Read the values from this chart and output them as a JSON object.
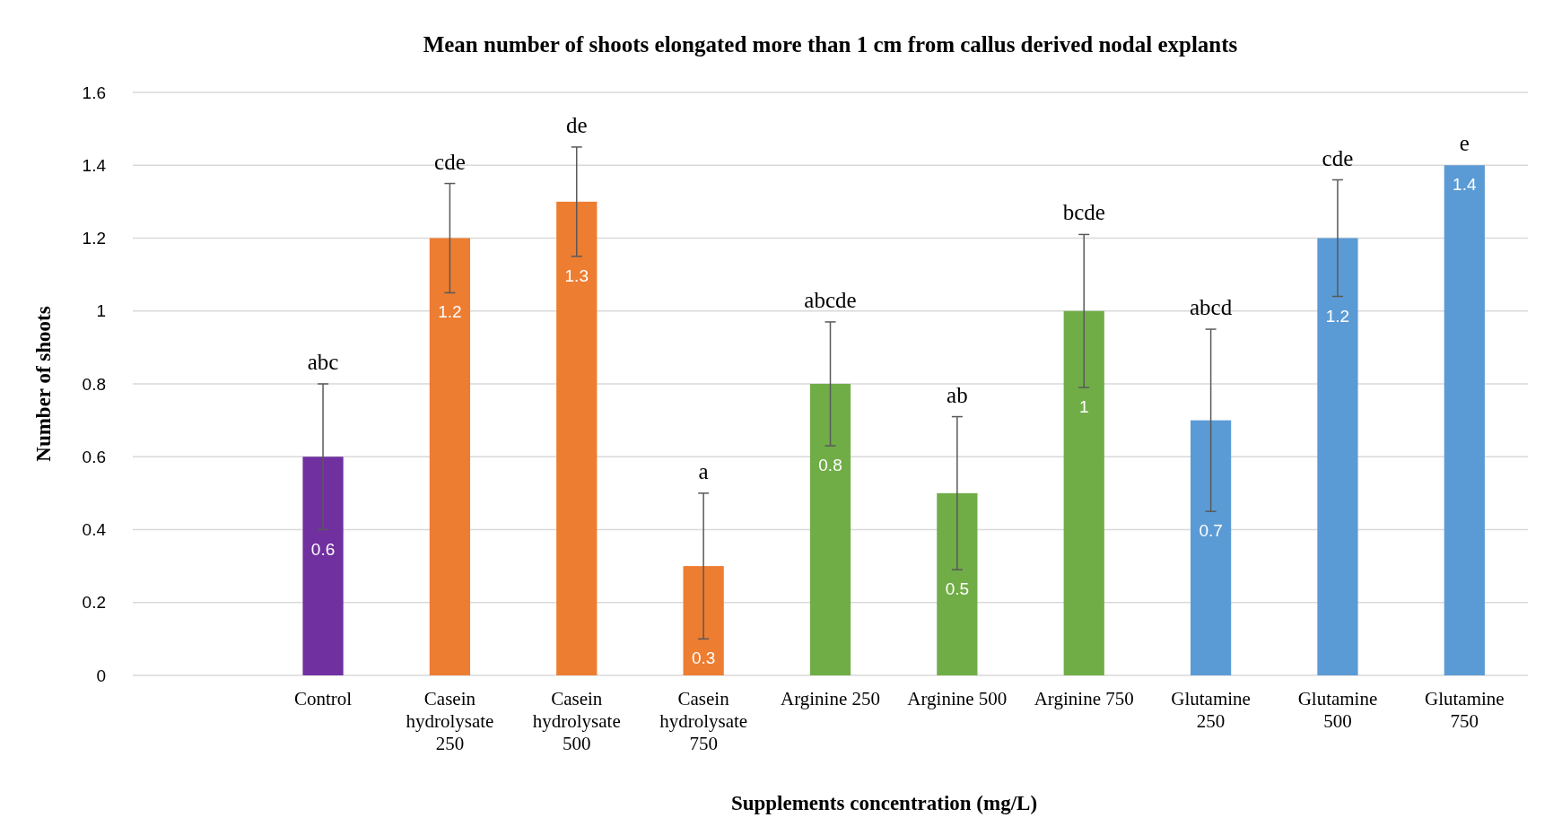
{
  "chart_data": {
    "type": "bar",
    "title": "Mean number of shoots elongated more than 1 cm from callus derived nodal explants",
    "xlabel": "Supplements concentration (mg/L)",
    "ylabel": "Number of shoots",
    "categories": [
      null,
      "Control",
      "Casein hydrolysate 250",
      "Casein hydrolysate 500",
      "Casein hydrolysate 750",
      "Arginine 250",
      "Arginine 500",
      "Arginine 750",
      "Glutamine 250",
      "Glutamine 500",
      "Glutamine 750"
    ],
    "values": [
      null,
      0.6,
      1.2,
      1.3,
      0.3,
      0.8,
      0.5,
      1.0,
      0.7,
      1.2,
      1.4
    ],
    "errors": [
      null,
      0.2,
      0.15,
      0.15,
      0.2,
      0.17,
      0.21,
      0.21,
      0.25,
      0.16,
      null
    ],
    "colors": [
      null,
      "#7030a0",
      "#ed7d31",
      "#ed7d31",
      "#ed7d31",
      "#70ad47",
      "#70ad47",
      "#70ad47",
      "#5b9bd5",
      "#5b9bd5",
      "#5b9bd5"
    ],
    "ylim": [
      0,
      1.6
    ],
    "yticks": [
      0,
      0.2,
      0.4,
      0.6,
      0.8,
      1,
      1.2,
      1.4,
      1.6
    ],
    "grid": "y",
    "data_labels": true,
    "annotations": [
      {
        "text": "abc",
        "x": "Control",
        "y": 0.8
      },
      {
        "text": "cde",
        "x": "Casein hydrolysate 250",
        "y": 1.35
      },
      {
        "text": "de",
        "x": "Casein hydrolysate 500",
        "y": 1.45
      },
      {
        "text": "a",
        "x": "Casein hydrolysate 750",
        "y": 0.5
      },
      {
        "text": "abcde",
        "x": "Arginine 250",
        "y": 0.97
      },
      {
        "text": "ab",
        "x": "Arginine 500",
        "y": 0.71
      },
      {
        "text": "bcde",
        "x": "Arginine 750",
        "y": 1.21
      },
      {
        "text": "abcd",
        "x": "Glutamine 250",
        "y": 0.95
      },
      {
        "text": "cde",
        "x": "Glutamine 500",
        "y": 1.36
      },
      {
        "text": "e",
        "x": "Glutamine 750",
        "y": 1.4
      }
    ]
  }
}
